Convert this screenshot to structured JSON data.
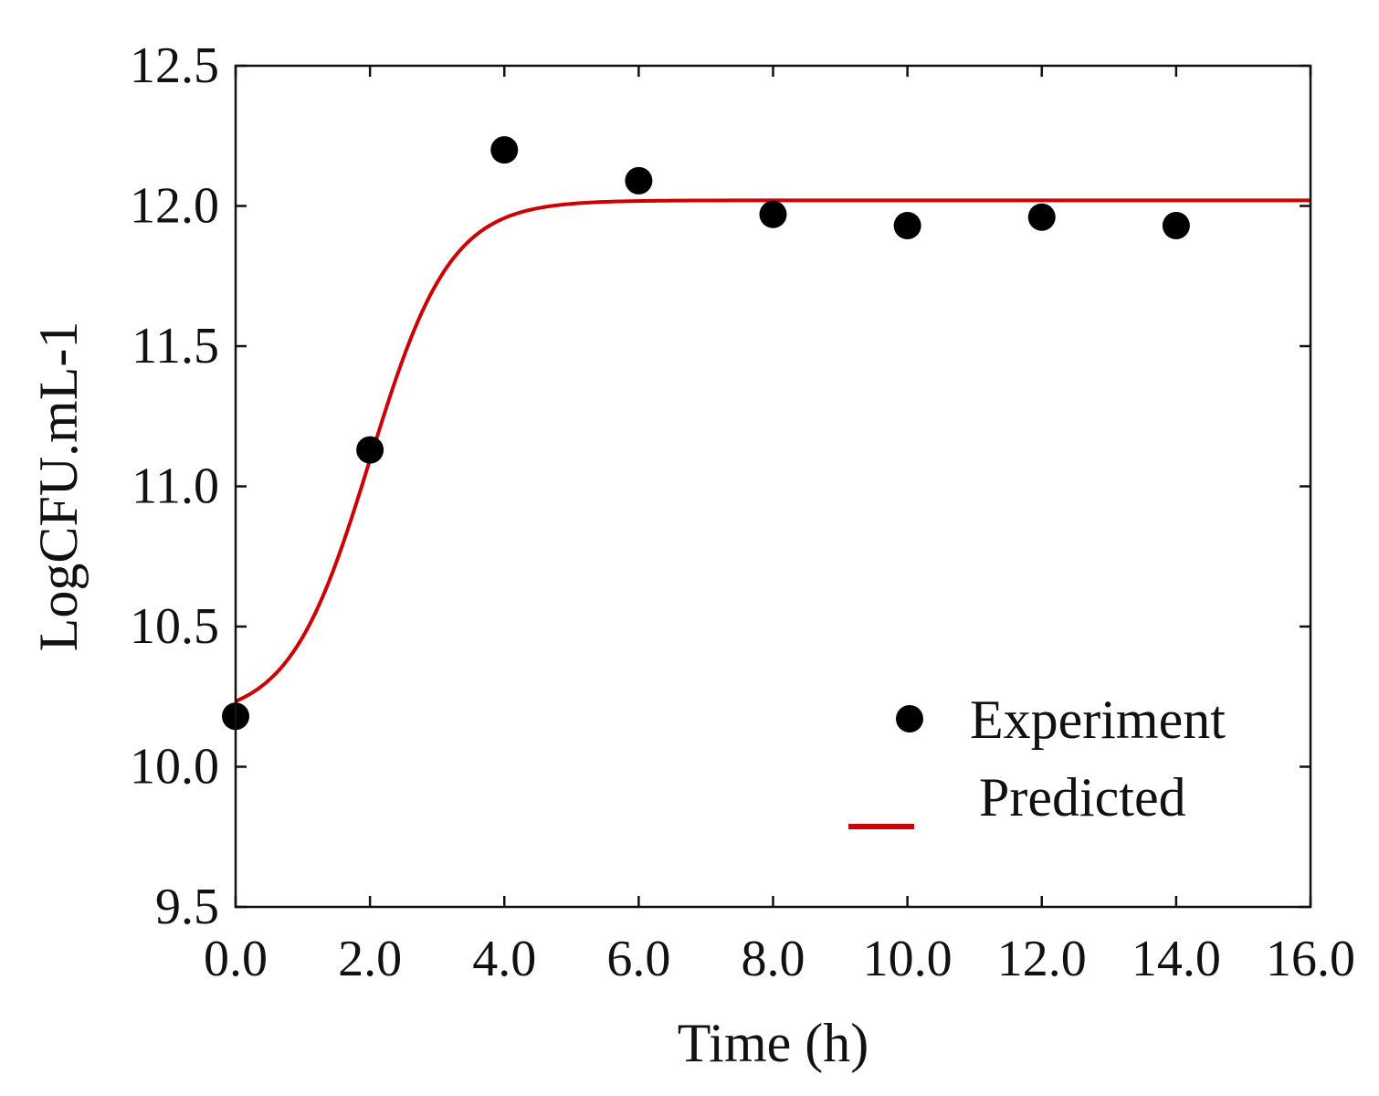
{
  "chart_data": {
    "type": "scatter",
    "title": "",
    "xlabel": "Time (h)",
    "ylabel": "LogCFU.mL-1",
    "xlim": [
      0,
      16
    ],
    "ylim": [
      9.5,
      12.5
    ],
    "xticks": [
      "0.0",
      "2.0",
      "4.0",
      "6.0",
      "8.0",
      "10.0",
      "12.0",
      "14.0",
      "16.0"
    ],
    "yticks": [
      "9.5",
      "10.0",
      "10.5",
      "11.0",
      "11.5",
      "12.0",
      "12.5"
    ],
    "grid": false,
    "legend_position": "bottom-right",
    "series": [
      {
        "name": "Experiment",
        "kind": "scatter",
        "color": "#000000",
        "x": [
          0,
          2,
          4,
          6,
          8,
          10,
          12,
          14
        ],
        "y": [
          10.18,
          11.13,
          12.2,
          12.09,
          11.97,
          11.93,
          11.96,
          11.93
        ]
      },
      {
        "name": "Predicted",
        "kind": "line",
        "color": "#cc0000",
        "model": "sigmoid",
        "y0": 10.17,
        "ymax": 12.02,
        "midpoint": 2.0,
        "rate": 1.67
      }
    ]
  }
}
